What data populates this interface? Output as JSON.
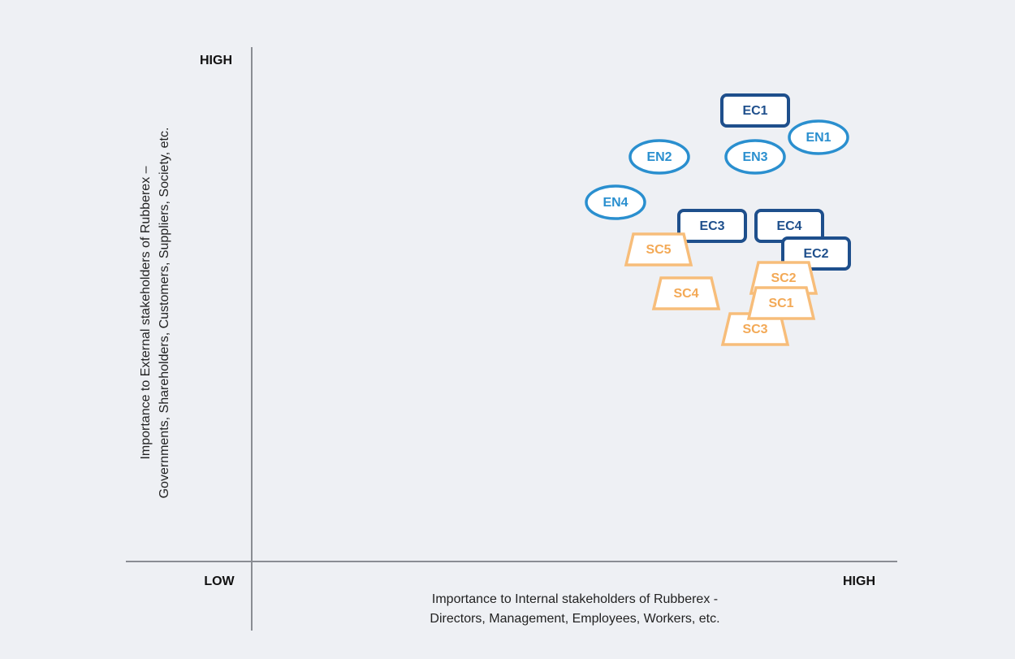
{
  "y_axis": {
    "label_lines": [
      "Importance to External stakeholders of Rubberex –",
      "Governments, Shareholders, Customers, Suppliers, Society, etc."
    ],
    "high": "HIGH"
  },
  "x_axis": {
    "label_lines": [
      "Importance to Internal stakeholders of Rubberex -",
      "Directors, Management, Employees, Workers, etc."
    ],
    "low": "LOW",
    "high": "HIGH"
  },
  "nodes": [
    {
      "label": "EC1"
    },
    {
      "label": "EN1"
    },
    {
      "label": "EN2"
    },
    {
      "label": "EN3"
    },
    {
      "label": "EN4"
    },
    {
      "label": "EC3"
    },
    {
      "label": "EC4"
    },
    {
      "label": "EC2"
    },
    {
      "label": "SC5"
    },
    {
      "label": "SC4"
    },
    {
      "label": "SC3"
    },
    {
      "label": "SC2"
    },
    {
      "label": "SC1"
    }
  ]
}
